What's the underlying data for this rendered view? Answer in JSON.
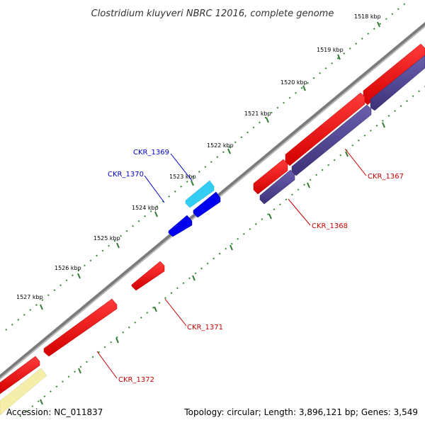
{
  "title": "Clostridium kluyveri NBRC 12016, complete genome",
  "footer": {
    "accession": "Accession: NC_011837",
    "summary": "Topology: circular; Length: 3,896,121 bp; Genes: 3,549"
  },
  "colors": {
    "backbone": "#808080",
    "forward_cds": "#ff0000",
    "reverse_cds": "#4b3f8f",
    "rna_light": "#33ccf2",
    "rna_dark": "#0000ee",
    "other": "#f4eeaa",
    "tick": "#2f8a2f",
    "label_forward": "#cc0000",
    "label_reverse": "#0000cc"
  },
  "ticks": [
    {
      "label": "1518 kbp"
    },
    {
      "label": "1519 kbp"
    },
    {
      "label": "1520 kbp"
    },
    {
      "label": "1521 kbp"
    },
    {
      "label": "1522 kbp"
    },
    {
      "label": "1523 kbp"
    },
    {
      "label": "1524 kbp"
    },
    {
      "label": "1525 kbp"
    },
    {
      "label": "1526 kbp"
    },
    {
      "label": "1527 kbp"
    }
  ],
  "genes": [
    {
      "name": "CKR_1367",
      "label": "CKR_1367",
      "strand": "forward"
    },
    {
      "name": "CKR_1368",
      "label": "CKR_1368",
      "strand": "reverse"
    },
    {
      "name": "CKR_1369",
      "label": "CKR_1369",
      "strand": "rna-light"
    },
    {
      "name": "CKR_1370",
      "label": "CKR_1370",
      "strand": "rna-dark"
    },
    {
      "name": "CKR_1371",
      "label": "CKR_1371",
      "strand": "forward"
    },
    {
      "name": "CKR_1372",
      "label": "CKR_1372",
      "strand": "forward"
    }
  ]
}
